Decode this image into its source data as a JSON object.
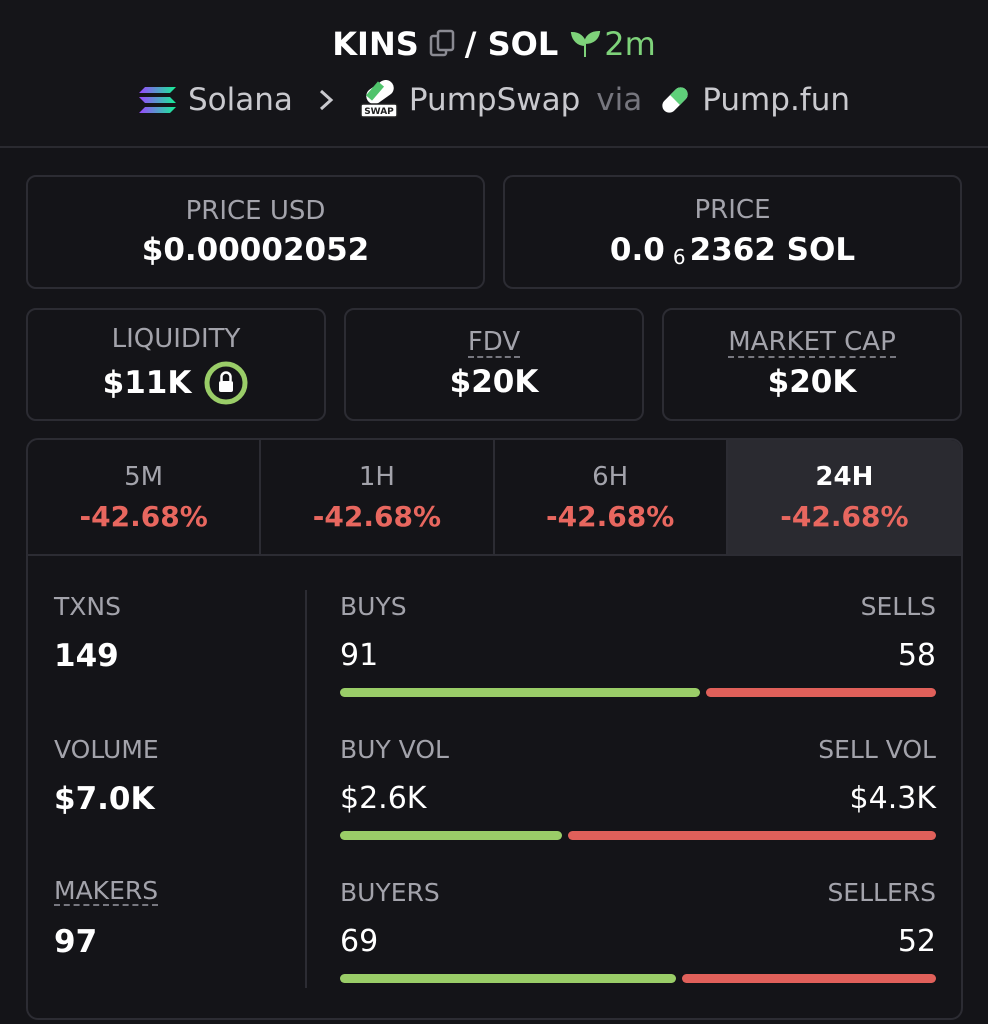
{
  "header": {
    "token": "KINS",
    "quote": "/ SOL",
    "age": "2m",
    "chain": "Solana",
    "dex": "PumpSwap",
    "via": "via",
    "launchpad": "Pump.fun"
  },
  "prices": [
    {
      "label": "PRICE USD",
      "value": "$0.00002052"
    },
    {
      "label": "PRICE",
      "value": "0.0",
      "zeros": "6",
      "digits": "2362 SOL"
    }
  ],
  "metrics": [
    {
      "label": "LIQUIDITY",
      "value": "$11K"
    },
    {
      "label": "FDV",
      "value": "$20K"
    },
    {
      "label": "MARKET CAP",
      "value": "$20K"
    }
  ],
  "periods": [
    {
      "label": "5M",
      "change": "-42.68%"
    },
    {
      "label": "1H",
      "change": "-42.68%"
    },
    {
      "label": "6H",
      "change": "-42.68%"
    },
    {
      "label": "24H",
      "change": "-42.68%"
    }
  ],
  "active_period": 3,
  "stats": [
    {
      "label": "TXNS",
      "value": 149,
      "buy_label": "BUYS",
      "buy": 91,
      "sell_label": "SELLS",
      "sell": 58
    },
    {
      "label": "VOLUME",
      "value": "$7.0K",
      "buy_label": "BUY VOL",
      "buy": {
        "value": 2600,
        "label": "$2.6K"
      },
      "sell_label": "SELL VOL",
      "sell": {
        "value": 4300,
        "label": "$4.3K"
      }
    },
    {
      "label": "MAKERS",
      "value": 97,
      "buy_label": "BUYERS",
      "buy": 69,
      "sell_label": "SELLERS",
      "sell": 52
    }
  ]
}
